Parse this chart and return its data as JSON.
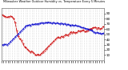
{
  "title": "Milwaukee Weather Outdoor Humidity vs. Temperature Every 5 Minutes",
  "line_red_color": "#cc0000",
  "line_blue_color": "#0000cc",
  "background_color": "#ffffff",
  "plot_bg_color": "#ffffff",
  "grid_color": "#aaaaaa",
  "right_yticks": [
    10,
    20,
    30,
    40,
    50,
    60,
    70,
    80,
    90
  ],
  "ylim": [
    0,
    100
  ],
  "n_points": 200,
  "red_data": [
    88,
    88,
    87,
    87,
    86,
    85,
    85,
    85,
    84,
    84,
    83,
    83,
    83,
    83,
    84,
    84,
    85,
    85,
    85,
    85,
    84,
    84,
    83,
    82,
    80,
    78,
    75,
    72,
    68,
    62,
    57,
    53,
    50,
    47,
    44,
    42,
    41,
    40,
    39,
    38,
    36,
    34,
    32,
    30,
    28,
    26,
    25,
    24,
    24,
    23,
    22,
    21,
    20,
    19,
    18,
    17,
    16,
    16,
    17,
    18,
    17,
    16,
    15,
    14,
    13,
    12,
    11,
    10,
    9,
    10,
    11,
    12,
    11,
    10,
    9,
    10,
    11,
    12,
    13,
    14,
    15,
    16,
    17,
    18,
    19,
    20,
    21,
    22,
    23,
    24,
    25,
    26,
    27,
    28,
    29,
    30,
    31,
    32,
    33,
    34,
    35,
    36,
    37,
    38,
    39,
    40,
    41,
    42,
    43,
    44,
    45,
    44,
    43,
    42,
    43,
    44,
    45,
    46,
    45,
    44,
    45,
    46,
    47,
    48,
    49,
    50,
    49,
    48,
    47,
    48,
    49,
    50,
    51,
    52,
    53,
    54,
    55,
    54,
    53,
    54,
    55,
    54,
    53,
    52,
    53,
    54,
    53,
    54,
    55,
    56,
    57,
    56,
    55,
    56,
    57,
    56,
    57,
    58,
    57,
    58,
    57,
    56,
    55,
    54,
    55,
    56,
    57,
    56,
    57,
    58,
    59,
    60,
    59,
    60,
    61,
    60,
    61,
    62,
    63,
    62,
    63,
    62,
    63,
    64,
    63,
    62,
    61,
    62,
    63,
    62,
    63,
    62,
    61,
    60,
    61,
    62,
    63,
    64,
    65,
    64
  ],
  "blue_data": [
    30,
    30,
    29,
    30,
    30,
    31,
    31,
    30,
    30,
    31,
    31,
    30,
    30,
    31,
    32,
    33,
    34,
    35,
    36,
    37,
    38,
    39,
    40,
    41,
    42,
    43,
    44,
    45,
    46,
    47,
    48,
    49,
    50,
    51,
    52,
    53,
    54,
    55,
    56,
    57,
    58,
    59,
    60,
    61,
    62,
    63,
    64,
    65,
    66,
    67,
    68,
    67,
    68,
    67,
    68,
    69,
    68,
    67,
    68,
    69,
    70,
    69,
    68,
    69,
    70,
    69,
    70,
    71,
    70,
    69,
    70,
    71,
    70,
    71,
    72,
    71,
    72,
    71,
    72,
    73,
    72,
    71,
    72,
    73,
    72,
    71,
    72,
    73,
    72,
    73,
    72,
    73,
    74,
    73,
    72,
    73,
    72,
    71,
    72,
    71,
    72,
    73,
    72,
    71,
    72,
    71,
    70,
    71,
    72,
    71,
    72,
    71,
    70,
    71,
    70,
    71,
    72,
    71,
    70,
    71,
    70,
    69,
    70,
    71,
    70,
    69,
    68,
    69,
    70,
    69,
    68,
    69,
    68,
    67,
    68,
    67,
    68,
    69,
    68,
    67,
    68,
    67,
    66,
    67,
    68,
    67,
    66,
    67,
    66,
    65,
    66,
    65,
    64,
    65,
    64,
    63,
    64,
    63,
    62,
    63,
    62,
    61,
    62,
    61,
    60,
    61,
    60,
    61,
    60,
    59,
    60,
    59,
    58,
    59,
    58,
    57,
    56,
    57,
    56,
    55,
    54,
    55,
    54,
    53,
    52,
    53,
    54,
    53,
    52,
    53,
    52,
    51,
    52,
    51,
    50,
    51,
    52,
    51,
    52,
    51
  ]
}
